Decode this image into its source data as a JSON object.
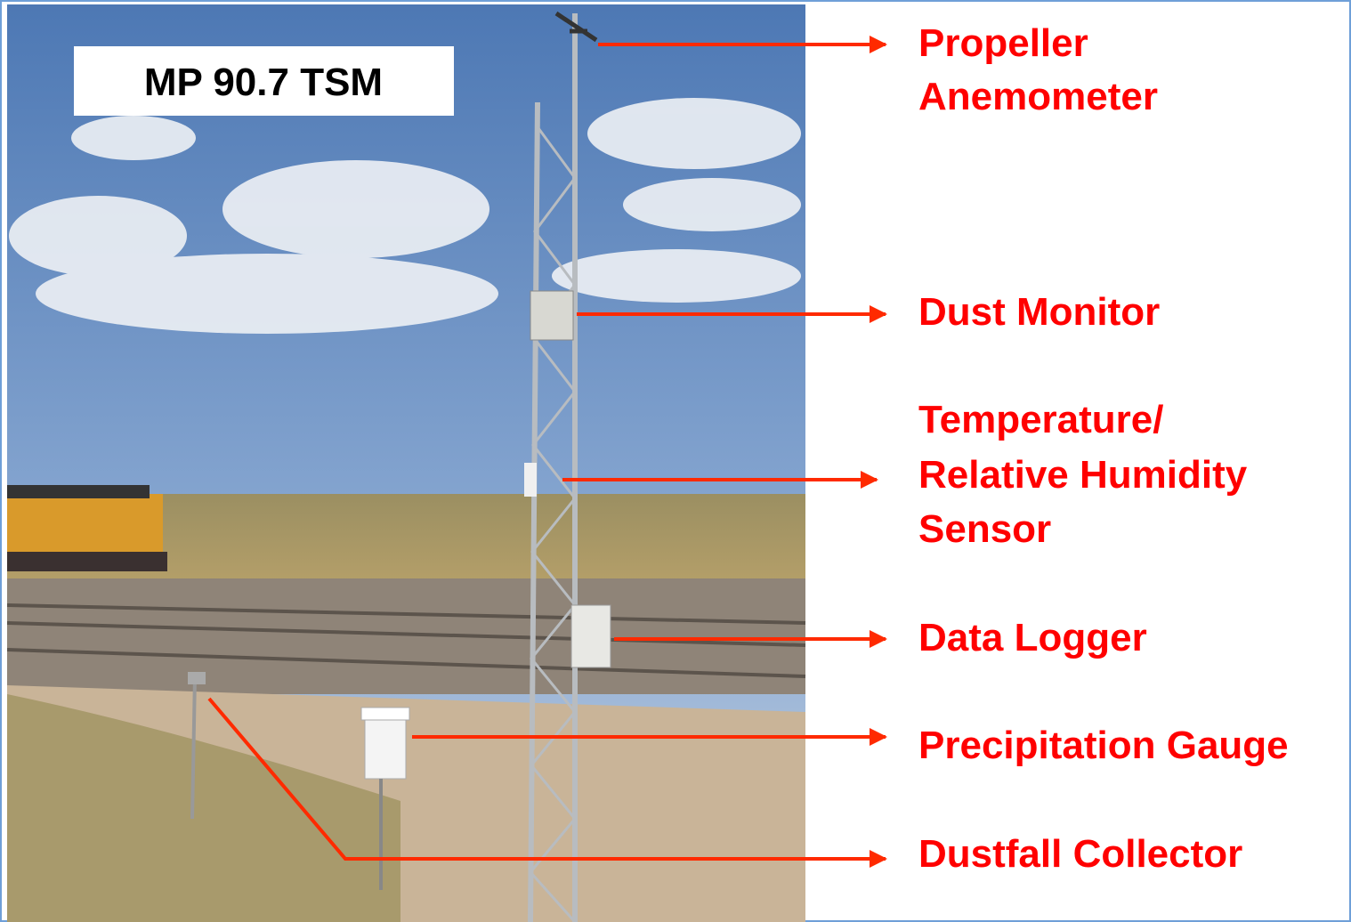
{
  "photo_label": "MP 90.7 TSM",
  "callouts": [
    {
      "lines": [
        "Propeller",
        "Anemometer"
      ]
    },
    {
      "lines": [
        "Dust Monitor"
      ]
    },
    {
      "lines": [
        "Temperature/",
        "Relative Humidity",
        "Sensor"
      ]
    },
    {
      "lines": [
        "Data Logger"
      ]
    },
    {
      "lines": [
        "Precipitation Gauge"
      ]
    },
    {
      "lines": [
        "Dustfall Collector"
      ]
    }
  ]
}
